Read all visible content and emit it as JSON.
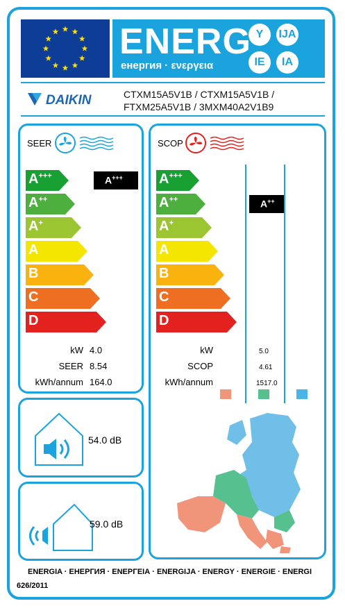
{
  "header": {
    "energy_word": "ENERG",
    "energy_subtitle": "енергия · ενεργεια",
    "language_badges": [
      "Y",
      "IJA",
      "IE",
      "IA"
    ]
  },
  "brand": {
    "name": "DAIKIN",
    "models_line1": "CTXM15A5V1B / CTXM15A5V1B /",
    "models_line2": "FTXM25A5V1B / 3MXM40A2V1B9"
  },
  "scale_classes": [
    {
      "letter": "A",
      "plus": "+++",
      "color": "#18a033"
    },
    {
      "letter": "A",
      "plus": "++",
      "color": "#4db03e"
    },
    {
      "letter": "A",
      "plus": "+",
      "color": "#9bc531"
    },
    {
      "letter": "A",
      "plus": "",
      "color": "#f4e600"
    },
    {
      "letter": "B",
      "plus": "",
      "color": "#f9b20e"
    },
    {
      "letter": "C",
      "plus": "",
      "color": "#ee6f21"
    },
    {
      "letter": "D",
      "plus": "",
      "color": "#e3211f"
    }
  ],
  "cooling": {
    "title": "SEER",
    "rating_letter": "A",
    "rating_plus": "+++",
    "rating_level": 0,
    "rows": [
      {
        "label": "kW",
        "value": "4.0"
      },
      {
        "label": "SEER",
        "value": "8.54"
      },
      {
        "label": "kWh/annum",
        "value": "164.0"
      }
    ]
  },
  "heating": {
    "title": "SCOP",
    "rating_letter": "A",
    "rating_plus": "++",
    "rating_level": 1,
    "rows": [
      {
        "label": "kW",
        "value": "5.0"
      },
      {
        "label": "SCOP",
        "value": "4.61"
      },
      {
        "label": "kWh/annum",
        "value": "1517.0"
      }
    ],
    "climate_colors": [
      "#f0957a",
      "#56c08e",
      "#4bb3e6"
    ]
  },
  "noise": {
    "indoor": "54.0 dB",
    "outdoor": "59.0 dB"
  },
  "footer": {
    "languages": "ENERGIA · ЕНЕРГИЯ · ΕΝΕΡΓΕΙΑ · ENERGIJA · ENERGY · ENERGIE · ENERGI",
    "regulation": "626/2011"
  },
  "colors": {
    "frame_blue": "#1aa3dd",
    "eu_blue": "#0d3d97",
    "eu_star": "#ffde00",
    "daikin_blue": "#1c67b3"
  }
}
